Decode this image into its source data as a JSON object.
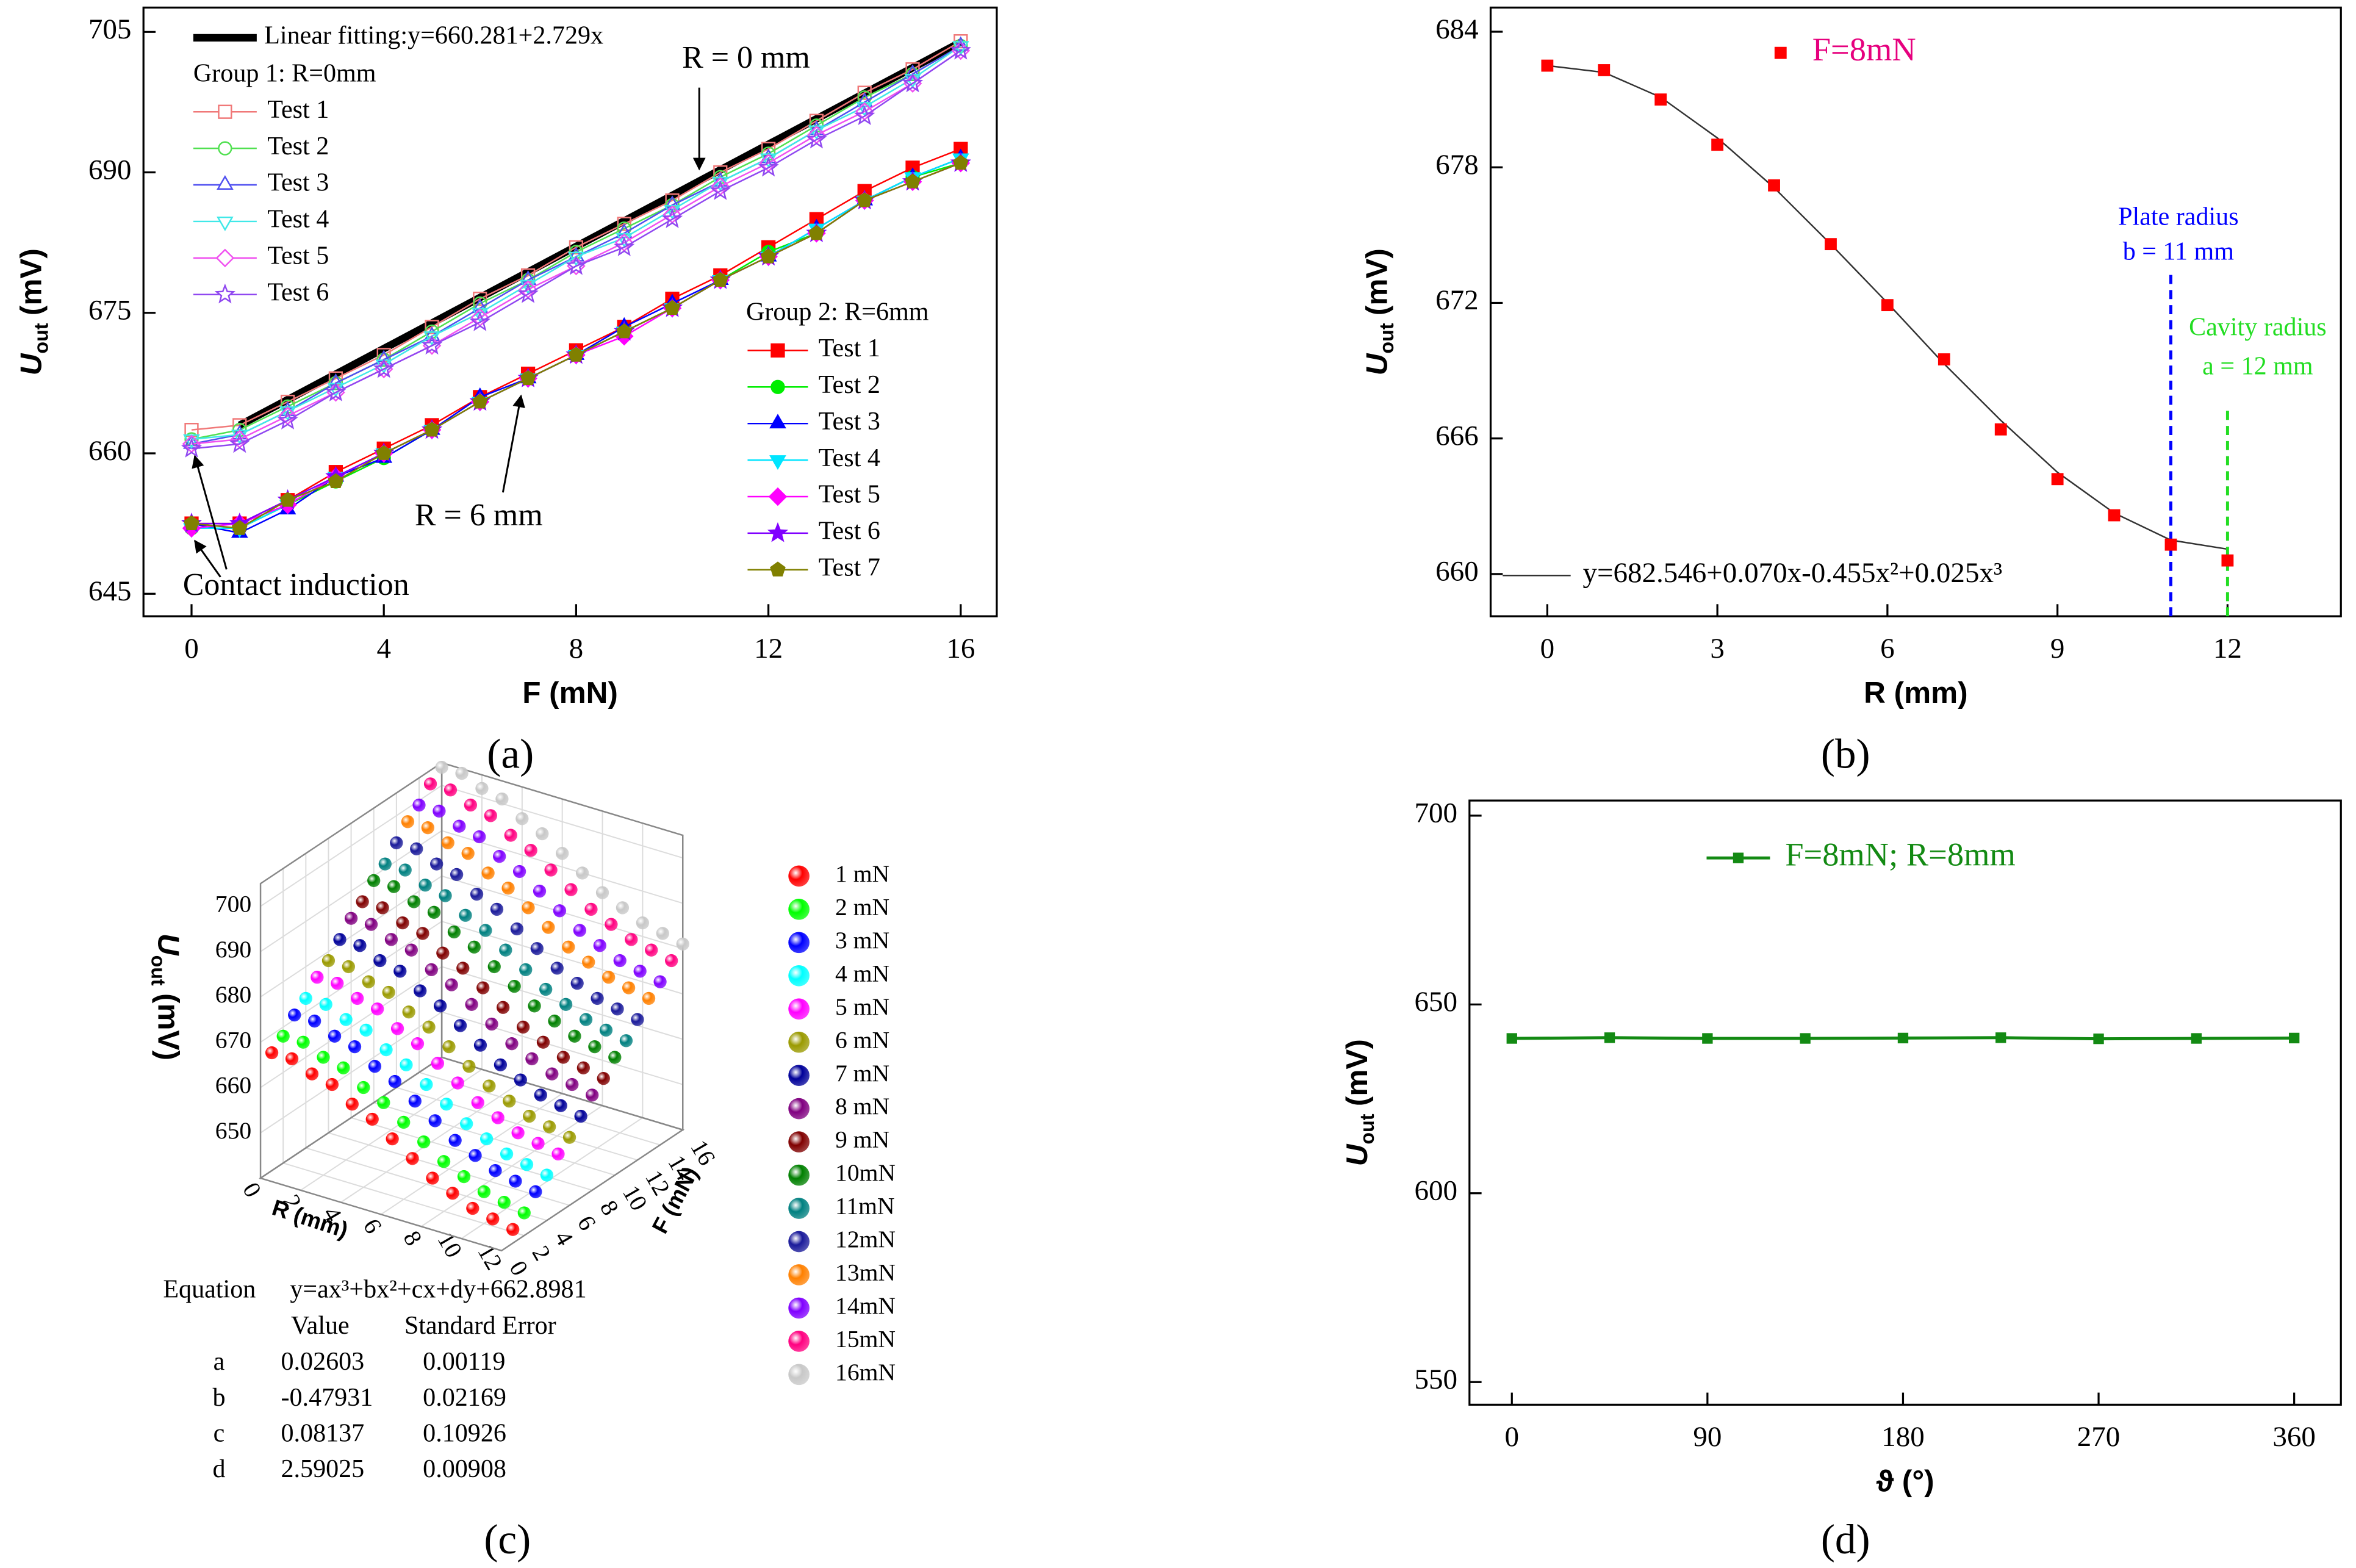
{
  "chart_data": [
    {
      "type": "line",
      "panel_label": "(a)",
      "xlabel": "F (mN)",
      "ylabel": {
        "text": "U",
        "sub": "out",
        "unit": "(mV)"
      },
      "x": [
        0,
        1,
        2,
        3,
        4,
        5,
        6,
        7,
        8,
        9,
        10,
        11,
        12,
        13,
        14,
        15,
        16
      ],
      "xlim": [
        -1,
        16.75
      ],
      "xticks": [
        0,
        4,
        8,
        12,
        16
      ],
      "ylim": [
        642.6,
        707.6
      ],
      "yticks": [
        645,
        660,
        675,
        690,
        705
      ],
      "fit": {
        "name": "Linear fitting:y=660.281+2.729x",
        "color": "#000000",
        "x": [
          1,
          16
        ],
        "values": [
          663.0,
          703.9
        ]
      },
      "groups": [
        {
          "name": "Group 1: R=0mm",
          "filled": false,
          "series": [
            {
              "name": "Test 1",
              "color": "#f07878",
              "marker": "square",
              "values": [
                662.5,
                663.0,
                665.5,
                668.0,
                670.5,
                673.5,
                676.5,
                679.0,
                682.0,
                684.5,
                687.0,
                690.0,
                692.5,
                695.5,
                698.5,
                701.0,
                704.0
              ]
            },
            {
              "name": "Test 2",
              "color": "#50e050",
              "marker": "circle",
              "values": [
                661.5,
                662.5,
                665.0,
                667.5,
                670.0,
                673.0,
                676.0,
                678.5,
                681.5,
                684.0,
                686.5,
                689.5,
                692.0,
                695.0,
                698.0,
                700.5,
                703.5
              ]
            },
            {
              "name": "Test 3",
              "color": "#5050f0",
              "marker": "triangle-up",
              "values": [
                661.0,
                662.0,
                664.5,
                667.5,
                670.0,
                672.5,
                675.5,
                678.5,
                681.0,
                683.5,
                686.5,
                689.0,
                691.5,
                694.5,
                697.5,
                700.5,
                703.5
              ]
            },
            {
              "name": "Test 4",
              "color": "#40e8e8",
              "marker": "triangle-down",
              "values": [
                661.5,
                662.0,
                664.5,
                667.0,
                669.5,
                672.5,
                675.0,
                678.0,
                681.0,
                683.0,
                686.0,
                689.0,
                691.5,
                694.5,
                697.0,
                700.0,
                703.5
              ]
            },
            {
              "name": "Test 5",
              "color": "#f050f0",
              "marker": "diamond",
              "values": [
                661.0,
                661.5,
                664.0,
                666.5,
                669.0,
                671.5,
                674.5,
                677.5,
                680.0,
                682.5,
                685.5,
                688.5,
                691.0,
                694.0,
                696.5,
                699.5,
                703.0
              ]
            },
            {
              "name": "Test 6",
              "color": "#9048f0",
              "marker": "star",
              "values": [
                660.5,
                661.0,
                663.5,
                666.5,
                669.0,
                671.5,
                674.0,
                677.0,
                680.0,
                682.0,
                685.0,
                688.0,
                690.5,
                693.5,
                696.0,
                699.5,
                703.0
              ]
            }
          ]
        },
        {
          "name": "Group 2: R=6mm",
          "filled": true,
          "series": [
            {
              "name": "Test 1",
              "color": "#ff0000",
              "marker": "square",
              "values": [
                652.5,
                652.5,
                655.0,
                658.0,
                660.5,
                663.0,
                666.0,
                668.5,
                671.0,
                673.5,
                676.5,
                679.0,
                682.0,
                685.0,
                688.0,
                690.5,
                692.5
              ]
            },
            {
              "name": "Test 2",
              "color": "#00ee00",
              "marker": "circle",
              "values": [
                652.0,
                652.0,
                654.5,
                657.0,
                659.5,
                662.5,
                665.5,
                668.0,
                670.5,
                673.0,
                675.5,
                678.5,
                681.5,
                683.5,
                687.0,
                689.5,
                691.0
              ]
            },
            {
              "name": "Test 3",
              "color": "#0000ff",
              "marker": "triangle-up",
              "values": [
                652.5,
                651.5,
                654.0,
                657.5,
                659.5,
                662.5,
                666.0,
                668.0,
                670.5,
                673.5,
                676.0,
                678.5,
                681.0,
                684.0,
                687.0,
                689.5,
                691.5
              ]
            },
            {
              "name": "Test 4",
              "color": "#00e5ff",
              "marker": "triangle-down",
              "values": [
                652.0,
                652.0,
                654.5,
                657.5,
                660.0,
                662.5,
                665.5,
                668.0,
                670.5,
                673.0,
                675.5,
                678.5,
                681.0,
                684.0,
                687.0,
                689.5,
                691.5
              ]
            },
            {
              "name": "Test 5",
              "color": "#ff00ff",
              "marker": "diamond",
              "values": [
                652.0,
                652.5,
                654.5,
                657.5,
                660.0,
                662.5,
                665.5,
                668.0,
                670.5,
                672.5,
                675.5,
                678.5,
                681.0,
                683.5,
                687.0,
                689.0,
                691.0
              ]
            },
            {
              "name": "Test 6",
              "color": "#8000ff",
              "marker": "star",
              "values": [
                652.5,
                652.5,
                655.0,
                657.5,
                660.0,
                662.5,
                665.5,
                668.0,
                670.5,
                673.0,
                675.5,
                678.5,
                681.0,
                683.5,
                687.0,
                689.0,
                691.0
              ]
            },
            {
              "name": "Test 7",
              "color": "#808000",
              "marker": "pentagon",
              "values": [
                652.5,
                652.0,
                655.0,
                657.0,
                660.0,
                662.5,
                665.5,
                668.0,
                670.5,
                673.0,
                675.5,
                678.5,
                681.0,
                683.5,
                687.0,
                689.0,
                691.0
              ]
            }
          ]
        }
      ],
      "annotations": [
        "R = 0 mm",
        "R = 6 mm",
        "Contact induction"
      ]
    },
    {
      "type": "scatter",
      "panel_label": "(b)",
      "xlabel": "R (mm)",
      "ylabel": {
        "text": "U",
        "sub": "out",
        "unit": "(mV)"
      },
      "xlim": [
        -1,
        14
      ],
      "xticks": [
        0,
        3,
        6,
        9,
        12
      ],
      "ylim": [
        658.13,
        685.07
      ],
      "yticks": [
        660,
        666,
        672,
        678,
        684
      ],
      "name": "F=8mN",
      "color": "#ff0000",
      "legend_color": "#e6007e",
      "marker": "square",
      "x": [
        0,
        1,
        2,
        3,
        4,
        5,
        6,
        7,
        8,
        9,
        10,
        11,
        12
      ],
      "values": [
        682.5,
        682.3,
        681.0,
        679.0,
        677.2,
        674.6,
        671.9,
        669.5,
        666.4,
        664.2,
        662.6,
        661.3,
        660.6
      ],
      "fit": {
        "name": "y=682.546+0.070x-0.455x²+0.025x³",
        "color": "#333333",
        "x": [
          0,
          1,
          2,
          3,
          4,
          5,
          6,
          7,
          8,
          9,
          10,
          11,
          12
        ],
        "values": [
          682.5,
          682.2,
          681.1,
          679.3,
          677.1,
          674.6,
          672.0,
          669.3,
          666.8,
          664.5,
          662.7,
          661.5,
          661.1
        ]
      },
      "reference_lines": [
        {
          "x": 11,
          "color": "#0000ff",
          "labels": [
            "Plate radius",
            "b = 11 mm"
          ]
        },
        {
          "x": 12,
          "color": "#22dd22",
          "labels": [
            "Cavity radius",
            "a = 12 mm"
          ]
        }
      ]
    },
    {
      "type": "scatter3d",
      "panel_label": "(c)",
      "rlabel": "R (mm)",
      "flabel": "F (mN)",
      "zlabel": {
        "text": "U",
        "sub": "out",
        "unit": "(mV)"
      },
      "r": [
        0,
        1,
        2,
        3,
        4,
        5,
        6,
        7,
        8,
        9,
        10,
        11,
        12
      ],
      "rlim": [
        0,
        12
      ],
      "rticks": [
        0,
        2,
        4,
        6,
        8,
        10,
        12
      ],
      "flim": [
        0,
        16
      ],
      "fticks": [
        0,
        2,
        4,
        6,
        8,
        10,
        12,
        14,
        16
      ],
      "zlim": [
        640,
        705
      ],
      "zticks": [
        650,
        660,
        670,
        680,
        690,
        700
      ],
      "series": [
        {
          "name": "1 mN",
          "f": 1,
          "color": "#ff0000",
          "values": [
            666,
            666,
            664,
            663,
            660,
            658,
            655,
            652,
            649,
            647,
            645,
            644,
            643
          ]
        },
        {
          "name": "2 mN",
          "f": 2,
          "color": "#00ff00",
          "values": [
            668,
            668,
            666,
            665,
            662,
            660,
            657,
            654,
            651,
            649,
            647,
            646,
            645
          ]
        },
        {
          "name": "3 mN",
          "f": 3,
          "color": "#0000ff",
          "values": [
            671,
            671,
            669,
            668,
            665,
            663,
            660,
            657,
            654,
            652,
            650,
            649,
            648
          ]
        },
        {
          "name": "4 mN",
          "f": 4,
          "color": "#00ffff",
          "values": [
            673,
            673,
            671,
            670,
            667,
            665,
            662,
            659,
            656,
            654,
            652,
            651,
            650
          ]
        },
        {
          "name": "5 mN",
          "f": 5,
          "color": "#ff00ff",
          "values": [
            676,
            676,
            674,
            673,
            670,
            668,
            665,
            662,
            659,
            657,
            655,
            654,
            653
          ]
        },
        {
          "name": "6 mN",
          "f": 6,
          "color": "#9a9a00",
          "values": [
            678,
            678,
            676,
            675,
            672,
            670,
            667,
            664,
            661,
            659,
            657,
            656,
            655
          ]
        },
        {
          "name": "7 mN",
          "f": 7,
          "color": "#000099",
          "values": [
            681,
            681,
            679,
            678,
            675,
            673,
            670,
            667,
            664,
            662,
            660,
            659,
            658
          ]
        },
        {
          "name": "8 mN",
          "f": 8,
          "color": "#800080",
          "values": [
            684,
            684,
            682,
            681,
            678,
            676,
            673,
            670,
            667,
            665,
            663,
            662,
            661
          ]
        },
        {
          "name": "9 mN",
          "f": 9,
          "color": "#800000",
          "values": [
            686,
            686,
            684,
            683,
            680,
            678,
            675,
            672,
            669,
            667,
            665,
            664,
            663
          ]
        },
        {
          "name": "10mN",
          "f": 10,
          "color": "#008000",
          "values": [
            689,
            689,
            687,
            686,
            683,
            681,
            678,
            675,
            672,
            670,
            668,
            667,
            666
          ]
        },
        {
          "name": "11mN",
          "f": 11,
          "color": "#008080",
          "values": [
            691,
            691,
            689,
            688,
            685,
            683,
            680,
            677,
            674,
            672,
            670,
            669,
            668
          ]
        },
        {
          "name": "12mN",
          "f": 12,
          "color": "#1a1a9a",
          "values": [
            694,
            694,
            692,
            691,
            688,
            686,
            683,
            680,
            677,
            675,
            673,
            672,
            671
          ]
        },
        {
          "name": "13mN",
          "f": 13,
          "color": "#ff8000",
          "values": [
            697,
            697,
            695,
            694,
            691,
            689,
            686,
            683,
            680,
            678,
            676,
            675,
            674
          ]
        },
        {
          "name": "14mN",
          "f": 14,
          "color": "#8000ff",
          "values": [
            699,
            699,
            697,
            696,
            693,
            691,
            688,
            685,
            682,
            680,
            678,
            677,
            676
          ]
        },
        {
          "name": "15mN",
          "f": 15,
          "color": "#ff0080",
          "values": [
            702,
            702,
            700,
            699,
            696,
            694,
            691,
            688,
            685,
            683,
            681,
            680,
            679
          ]
        },
        {
          "name": "16mN",
          "f": 16,
          "color": "#c8c8c8",
          "values": [
            704,
            704,
            702,
            701,
            698,
            696,
            693,
            690,
            687,
            685,
            683,
            682,
            681
          ]
        }
      ],
      "table": {
        "equation_label": "Equation",
        "equation": "y=ax³+bx²+cx+dy+662.8981",
        "columns": [
          "Value",
          "Standard Error"
        ],
        "rows": [
          [
            "a",
            "0.02603",
            "0.00119"
          ],
          [
            "b",
            "-0.47931",
            "0.02169"
          ],
          [
            "c",
            "0.08137",
            "0.10926"
          ],
          [
            "d",
            "2.59025",
            "0.00908"
          ]
        ]
      }
    },
    {
      "type": "line",
      "panel_label": "(d)",
      "xlabel": "ϑ (°)",
      "ylabel": {
        "text": "U",
        "sub": "out",
        "unit": "(mV)"
      },
      "xlim": [
        -19.5,
        381.5
      ],
      "xticks": [
        0,
        90,
        180,
        270,
        360
      ],
      "ylim": [
        544,
        704
      ],
      "yticks": [
        550,
        600,
        650,
        700
      ],
      "name": "F=8mN; R=8mm",
      "color": "#138a13",
      "marker": "square",
      "x": [
        0,
        45,
        90,
        135,
        180,
        225,
        270,
        315,
        360
      ],
      "values": [
        641.0,
        641.2,
        641.0,
        641.0,
        641.1,
        641.2,
        640.9,
        641.0,
        641.1
      ]
    }
  ]
}
